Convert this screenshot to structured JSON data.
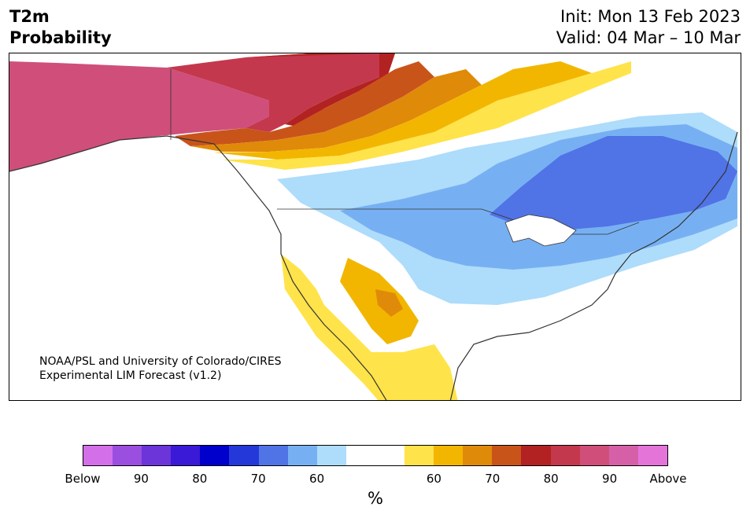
{
  "header": {
    "title_line1": "T2m",
    "title_line2": "Probability",
    "init": "Init: Mon 13 Feb 2023",
    "valid": "Valid: 04 Mar – 10 Mar"
  },
  "credit": {
    "line1": "NOAA/PSL and University of Colorado/CIRES",
    "line2": "Experimental LIM Forecast (v1.2)"
  },
  "colorbar": {
    "colors": [
      "#d36fe8",
      "#9b4fe0",
      "#6b35d9",
      "#3a1ad6",
      "#0000cc",
      "#2438d9",
      "#5073e6",
      "#77b0f2",
      "#aedcfb",
      "#ffffff",
      "#ffffff",
      "#ffe34a",
      "#f2b600",
      "#e08a0a",
      "#c9541a",
      "#b22222",
      "#c4384d",
      "#cf4f7a",
      "#d660a8",
      "#e474d8"
    ],
    "ticks": [
      {
        "label": "Below",
        "index": 0
      },
      {
        "label": "90",
        "index": 2
      },
      {
        "label": "80",
        "index": 4
      },
      {
        "label": "70",
        "index": 6
      },
      {
        "label": "60",
        "index": 8
      },
      {
        "label": "60",
        "index": 12
      },
      {
        "label": "70",
        "index": 14
      },
      {
        "label": "80",
        "index": 16
      },
      {
        "label": "90",
        "index": 18
      },
      {
        "label": "Above",
        "index": 20
      }
    ],
    "units": "%"
  },
  "map_colors": {
    "above_90": "#cf4f7a",
    "above_80": "#c4384d",
    "above_75": "#b22222",
    "above_70": "#c9541a",
    "above_65": "#e08a0a",
    "above_60": "#f2b600",
    "above_55": "#ffe34a",
    "below_55": "#aedcfb",
    "below_60": "#77b0f2",
    "below_65": "#5073e6",
    "land_line": "#333333"
  }
}
